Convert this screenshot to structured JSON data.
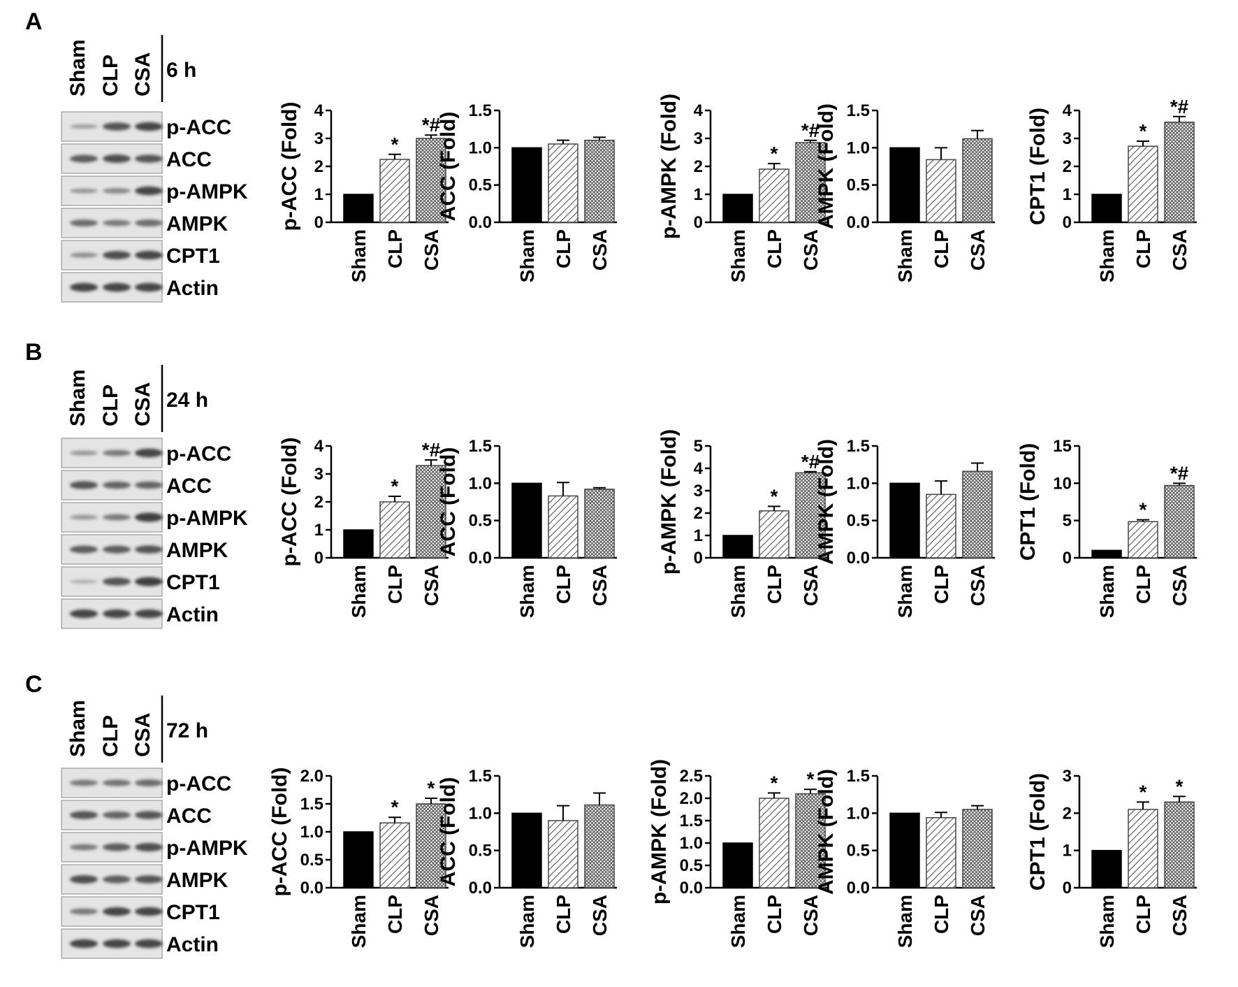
{
  "rows": [
    {
      "letter": "A",
      "time": "6 h",
      "lanes": [
        "Sham",
        "CLP",
        "CSA"
      ],
      "proteins": [
        "p-ACC",
        "ACC",
        "p-AMPK",
        "AMPK",
        "CPT1",
        "Actin"
      ],
      "blot_intensity": [
        [
          0.25,
          0.75,
          0.85
        ],
        [
          0.7,
          0.8,
          0.75
        ],
        [
          0.3,
          0.4,
          0.85
        ],
        [
          0.6,
          0.5,
          0.6
        ],
        [
          0.35,
          0.8,
          0.85
        ],
        [
          0.85,
          0.85,
          0.85
        ]
      ]
    },
    {
      "letter": "B",
      "time": "24 h",
      "lanes": [
        "Sham",
        "CLP",
        "CSA"
      ],
      "proteins": [
        "p-ACC",
        "ACC",
        "p-AMPK",
        "AMPK",
        "CPT1",
        "Actin"
      ],
      "blot_intensity": [
        [
          0.3,
          0.5,
          0.85
        ],
        [
          0.75,
          0.65,
          0.65
        ],
        [
          0.3,
          0.5,
          0.9
        ],
        [
          0.7,
          0.7,
          0.75
        ],
        [
          0.15,
          0.75,
          0.9
        ],
        [
          0.85,
          0.85,
          0.85
        ]
      ]
    },
    {
      "letter": "C",
      "time": "72 h",
      "lanes": [
        "Sham",
        "CLP",
        "CSA"
      ],
      "proteins": [
        "p-ACC",
        "ACC",
        "p-AMPK",
        "AMPK",
        "CPT1",
        "Actin"
      ],
      "blot_intensity": [
        [
          0.5,
          0.55,
          0.6
        ],
        [
          0.75,
          0.65,
          0.75
        ],
        [
          0.5,
          0.7,
          0.8
        ],
        [
          0.8,
          0.7,
          0.75
        ],
        [
          0.5,
          0.85,
          0.85
        ],
        [
          0.85,
          0.85,
          0.85
        ]
      ]
    }
  ],
  "chart_data": [
    {
      "type": "bar",
      "row": "A",
      "ylabel": "p-ACC (Fold)",
      "categories": [
        "Sham",
        "CLP",
        "CSA"
      ],
      "values": [
        1.0,
        2.25,
        3.0
      ],
      "errors": [
        0,
        0.18,
        0.12
      ],
      "ylim": [
        0,
        4
      ],
      "yticks": [
        "0",
        "1",
        "2",
        "3",
        "4"
      ],
      "annotations": [
        "",
        "*",
        "*#"
      ]
    },
    {
      "type": "bar",
      "row": "A",
      "ylabel": "ACC (Fold)",
      "categories": [
        "Sham",
        "CLP",
        "CSA"
      ],
      "values": [
        1.0,
        1.05,
        1.1
      ],
      "errors": [
        0,
        0.05,
        0.04
      ],
      "ylim": [
        0,
        1.5
      ],
      "yticks": [
        "0.0",
        "0.5",
        "1.0",
        "1.5"
      ],
      "annotations": [
        "",
        "",
        ""
      ]
    },
    {
      "type": "bar",
      "row": "A",
      "ylabel": "p-AMPK (Fold)",
      "categories": [
        "Sham",
        "CLP",
        "CSA"
      ],
      "values": [
        1.0,
        1.9,
        2.85
      ],
      "errors": [
        0,
        0.2,
        0.08
      ],
      "ylim": [
        0,
        4
      ],
      "yticks": [
        "0",
        "1",
        "2",
        "3",
        "4"
      ],
      "annotations": [
        "",
        "*",
        "*#"
      ]
    },
    {
      "type": "bar",
      "row": "A",
      "ylabel": "AMPK (Fold)",
      "categories": [
        "Sham",
        "CLP",
        "CSA"
      ],
      "values": [
        1.0,
        0.84,
        1.12
      ],
      "errors": [
        0,
        0.16,
        0.11
      ],
      "ylim": [
        0,
        1.5
      ],
      "yticks": [
        "0.0",
        "0.5",
        "1.0",
        "1.5"
      ],
      "annotations": [
        "",
        "",
        ""
      ]
    },
    {
      "type": "bar",
      "row": "A",
      "ylabel": "CPT1 (Fold)",
      "categories": [
        "Sham",
        "CLP",
        "CSA"
      ],
      "values": [
        1.0,
        2.72,
        3.58
      ],
      "errors": [
        0,
        0.18,
        0.2
      ],
      "ylim": [
        0,
        4
      ],
      "yticks": [
        "0",
        "1",
        "2",
        "3",
        "4"
      ],
      "annotations": [
        "",
        "*",
        "*#"
      ]
    },
    {
      "type": "bar",
      "row": "B",
      "ylabel": "p-ACC (Fold)",
      "categories": [
        "Sham",
        "CLP",
        "CSA"
      ],
      "values": [
        1.0,
        2.0,
        3.3
      ],
      "errors": [
        0,
        0.2,
        0.2
      ],
      "ylim": [
        0,
        4
      ],
      "yticks": [
        "0",
        "1",
        "2",
        "3",
        "4"
      ],
      "annotations": [
        "",
        "*",
        "*#"
      ]
    },
    {
      "type": "bar",
      "row": "B",
      "ylabel": "ACC (Fold)",
      "categories": [
        "Sham",
        "CLP",
        "CSA"
      ],
      "values": [
        1.0,
        0.83,
        0.92
      ],
      "errors": [
        0,
        0.18,
        0.02
      ],
      "ylim": [
        0,
        1.5
      ],
      "yticks": [
        "0.0",
        "0.5",
        "1.0",
        "1.5"
      ],
      "annotations": [
        "",
        "",
        ""
      ]
    },
    {
      "type": "bar",
      "row": "B",
      "ylabel": "p-AMPK (Fold)",
      "categories": [
        "Sham",
        "CLP",
        "CSA"
      ],
      "values": [
        1.0,
        2.1,
        3.8
      ],
      "errors": [
        0,
        0.2,
        0.05
      ],
      "ylim": [
        0,
        5
      ],
      "yticks": [
        "0",
        "1",
        "2",
        "3",
        "4",
        "5"
      ],
      "annotations": [
        "",
        "*",
        "*#"
      ]
    },
    {
      "type": "bar",
      "row": "B",
      "ylabel": "AMPK (Fold)",
      "categories": [
        "Sham",
        "CLP",
        "CSA"
      ],
      "values": [
        1.0,
        0.85,
        1.16
      ],
      "errors": [
        0,
        0.18,
        0.11
      ],
      "ylim": [
        0,
        1.5
      ],
      "yticks": [
        "0.0",
        "0.5",
        "1.0",
        "1.5"
      ],
      "annotations": [
        "",
        "",
        ""
      ]
    },
    {
      "type": "bar",
      "row": "B",
      "ylabel": "CPT1 (Fold)",
      "categories": [
        "Sham",
        "CLP",
        "CSA"
      ],
      "values": [
        1.0,
        4.85,
        9.7
      ],
      "errors": [
        0,
        0.25,
        0.3
      ],
      "ylim": [
        0,
        15
      ],
      "yticks": [
        "0",
        "5",
        "10",
        "15"
      ],
      "annotations": [
        "",
        "*",
        "*#"
      ]
    },
    {
      "type": "bar",
      "row": "C",
      "ylabel": "p-ACC (Fold)",
      "categories": [
        "Sham",
        "CLP",
        "CSA"
      ],
      "values": [
        1.0,
        1.16,
        1.5
      ],
      "errors": [
        0,
        0.1,
        0.1
      ],
      "ylim": [
        0,
        2.0
      ],
      "yticks": [
        "0.0",
        "0.5",
        "1.0",
        "1.5",
        "2.0"
      ],
      "annotations": [
        "",
        "*",
        "*"
      ]
    },
    {
      "type": "bar",
      "row": "C",
      "ylabel": "ACC (Fold)",
      "categories": [
        "Sham",
        "CLP",
        "CSA"
      ],
      "values": [
        1.0,
        0.9,
        1.11
      ],
      "errors": [
        0,
        0.2,
        0.16
      ],
      "ylim": [
        0,
        1.5
      ],
      "yticks": [
        "0.0",
        "0.5",
        "1.0",
        "1.5"
      ],
      "annotations": [
        "",
        "",
        ""
      ]
    },
    {
      "type": "bar",
      "row": "C",
      "ylabel": "p-AMPK (Fold)",
      "categories": [
        "Sham",
        "CLP",
        "CSA"
      ],
      "values": [
        1.0,
        2.0,
        2.1
      ],
      "errors": [
        0,
        0.12,
        0.1
      ],
      "ylim": [
        0,
        2.5
      ],
      "yticks": [
        "0.0",
        "0.5",
        "1.0",
        "1.5",
        "2.0",
        "2.5"
      ],
      "annotations": [
        "",
        "*",
        "*"
      ]
    },
    {
      "type": "bar",
      "row": "C",
      "ylabel": "AMPK (Fold)",
      "categories": [
        "Sham",
        "CLP",
        "CSA"
      ],
      "values": [
        1.0,
        0.94,
        1.05
      ],
      "errors": [
        0,
        0.07,
        0.05
      ],
      "ylim": [
        0,
        1.5
      ],
      "yticks": [
        "0.0",
        "0.5",
        "1.0",
        "1.5"
      ],
      "annotations": [
        "",
        "",
        ""
      ]
    },
    {
      "type": "bar",
      "row": "C",
      "ylabel": "CPT1 (Fold)",
      "categories": [
        "Sham",
        "CLP",
        "CSA"
      ],
      "values": [
        1.0,
        2.1,
        2.3
      ],
      "errors": [
        0,
        0.2,
        0.15
      ],
      "ylim": [
        0,
        3
      ],
      "yticks": [
        "0",
        "1",
        "2",
        "3"
      ],
      "annotations": [
        "",
        "*",
        "*"
      ]
    }
  ],
  "colors": {
    "sham_bar": "#000000",
    "clp_hatch": "#555555",
    "csa_hatch": "#555555",
    "band": "#1a1a1a",
    "blot_bg": "#e4e4e4"
  }
}
